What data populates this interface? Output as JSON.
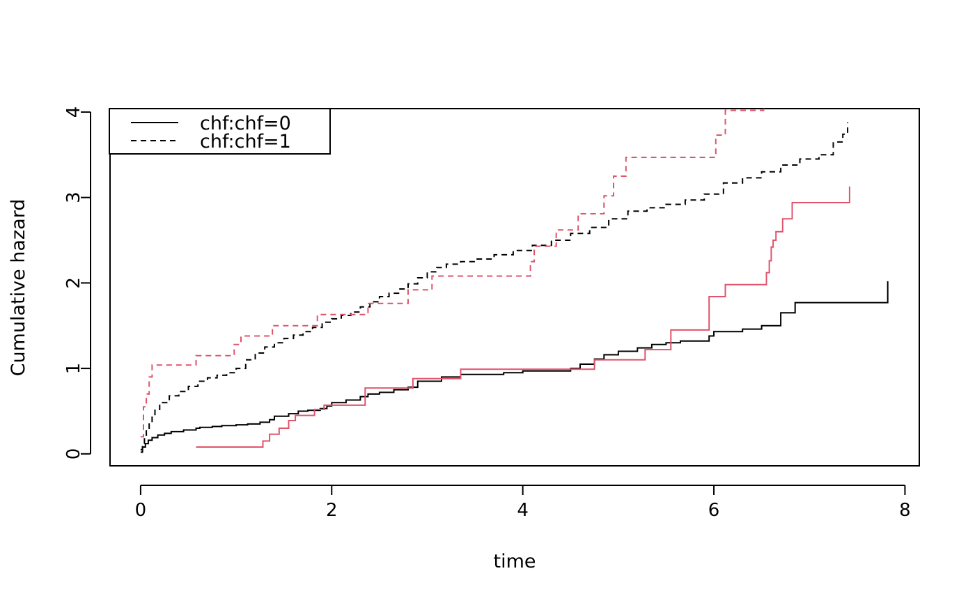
{
  "chart_data": {
    "type": "line",
    "step": true,
    "title": "",
    "xlabel": "time",
    "ylabel": "Cumulative hazard",
    "xlim": [
      -0.32,
      8.15
    ],
    "ylim": [
      -0.14,
      4.04
    ],
    "xticks": [
      0,
      2,
      4,
      6,
      8
    ],
    "yticks": [
      0,
      1,
      2,
      3,
      4
    ],
    "grid": false,
    "legend": {
      "position": "top-left",
      "entries": [
        {
          "label": "chf:chf=0",
          "linetype": "solid"
        },
        {
          "label": "chf:chf=1",
          "linetype": "dashed"
        }
      ]
    },
    "series": [
      {
        "name": "chf:chf=0",
        "color": "#000000",
        "linetype": "solid",
        "x": [
          0,
          0.02,
          0.05,
          0.08,
          0.12,
          0.18,
          0.25,
          0.32,
          0.45,
          0.58,
          0.62,
          0.75,
          0.85,
          1.0,
          1.12,
          1.25,
          1.35,
          1.4,
          1.55,
          1.65,
          1.75,
          1.88,
          1.95,
          2.0,
          2.15,
          2.3,
          2.38,
          2.5,
          2.65,
          2.8,
          2.9,
          3.15,
          3.35,
          3.8,
          4.0,
          4.5,
          4.6,
          4.75,
          4.85,
          5.0,
          5.2,
          5.35,
          5.5,
          5.65,
          5.95,
          6.0,
          6.3,
          6.5,
          6.7,
          6.85,
          7.82
        ],
        "y": [
          0.02,
          0.08,
          0.12,
          0.16,
          0.19,
          0.22,
          0.24,
          0.26,
          0.28,
          0.3,
          0.31,
          0.32,
          0.33,
          0.34,
          0.35,
          0.37,
          0.4,
          0.44,
          0.47,
          0.5,
          0.51,
          0.53,
          0.56,
          0.6,
          0.63,
          0.67,
          0.7,
          0.72,
          0.75,
          0.78,
          0.85,
          0.9,
          0.93,
          0.95,
          0.97,
          1.0,
          1.05,
          1.11,
          1.16,
          1.2,
          1.24,
          1.28,
          1.3,
          1.32,
          1.38,
          1.43,
          1.46,
          1.5,
          1.65,
          1.77,
          2.02
        ]
      },
      {
        "name": "chf:chf=1",
        "color": "#000000",
        "linetype": "dashed",
        "x": [
          0,
          0.02,
          0.04,
          0.06,
          0.09,
          0.12,
          0.15,
          0.2,
          0.3,
          0.4,
          0.5,
          0.6,
          0.7,
          0.8,
          0.9,
          1.0,
          1.1,
          1.2,
          1.3,
          1.4,
          1.5,
          1.6,
          1.7,
          1.8,
          1.9,
          2.0,
          2.1,
          2.2,
          2.3,
          2.4,
          2.5,
          2.6,
          2.7,
          2.8,
          2.9,
          3.0,
          3.1,
          3.2,
          3.35,
          3.5,
          3.7,
          3.9,
          4.1,
          4.3,
          4.5,
          4.7,
          4.9,
          5.1,
          5.3,
          5.5,
          5.7,
          5.9,
          6.1,
          6.3,
          6.5,
          6.7,
          6.9,
          7.1,
          7.25,
          7.35,
          7.4
        ],
        "y": [
          0.05,
          0.12,
          0.2,
          0.3,
          0.38,
          0.45,
          0.52,
          0.6,
          0.68,
          0.73,
          0.79,
          0.85,
          0.89,
          0.92,
          0.95,
          1.0,
          1.1,
          1.18,
          1.25,
          1.3,
          1.35,
          1.39,
          1.43,
          1.48,
          1.54,
          1.58,
          1.62,
          1.66,
          1.72,
          1.78,
          1.84,
          1.88,
          1.93,
          1.99,
          2.06,
          2.13,
          2.18,
          2.22,
          2.25,
          2.28,
          2.33,
          2.38,
          2.44,
          2.5,
          2.58,
          2.65,
          2.75,
          2.84,
          2.88,
          2.92,
          2.97,
          3.04,
          3.17,
          3.23,
          3.3,
          3.38,
          3.45,
          3.5,
          3.65,
          3.74,
          3.88
        ]
      },
      {
        "name": "",
        "color": "#DF536B",
        "linetype": "solid",
        "x": [
          0.58,
          1.28,
          1.35,
          1.45,
          1.55,
          1.62,
          1.82,
          1.92,
          2.35,
          2.85,
          3.35,
          4.75,
          5.28,
          5.55,
          5.95,
          6.12,
          6.55,
          6.58,
          6.6,
          6.62,
          6.65,
          6.72,
          6.82,
          7.42
        ],
        "y": [
          0.08,
          0.15,
          0.23,
          0.3,
          0.39,
          0.45,
          0.52,
          0.57,
          0.77,
          0.88,
          0.99,
          1.1,
          1.22,
          1.45,
          1.84,
          1.98,
          2.12,
          2.26,
          2.42,
          2.5,
          2.6,
          2.75,
          2.94,
          3.13
        ]
      },
      {
        "name": "",
        "color": "#DF536B",
        "linetype": "dashed",
        "x": [
          0,
          0.03,
          0.06,
          0.09,
          0.12,
          0.58,
          0.98,
          1.05,
          1.38,
          1.85,
          2.38,
          2.8,
          3.05,
          4.08,
          4.12,
          4.35,
          4.58,
          4.85,
          4.95,
          5.08,
          6.02,
          6.12,
          6.52
        ],
        "y": [
          0.2,
          0.55,
          0.7,
          0.9,
          1.04,
          1.15,
          1.28,
          1.38,
          1.5,
          1.63,
          1.76,
          1.92,
          2.08,
          2.25,
          2.43,
          2.62,
          2.81,
          3.02,
          3.25,
          3.47,
          3.73,
          4.02,
          4.06
        ]
      }
    ]
  }
}
